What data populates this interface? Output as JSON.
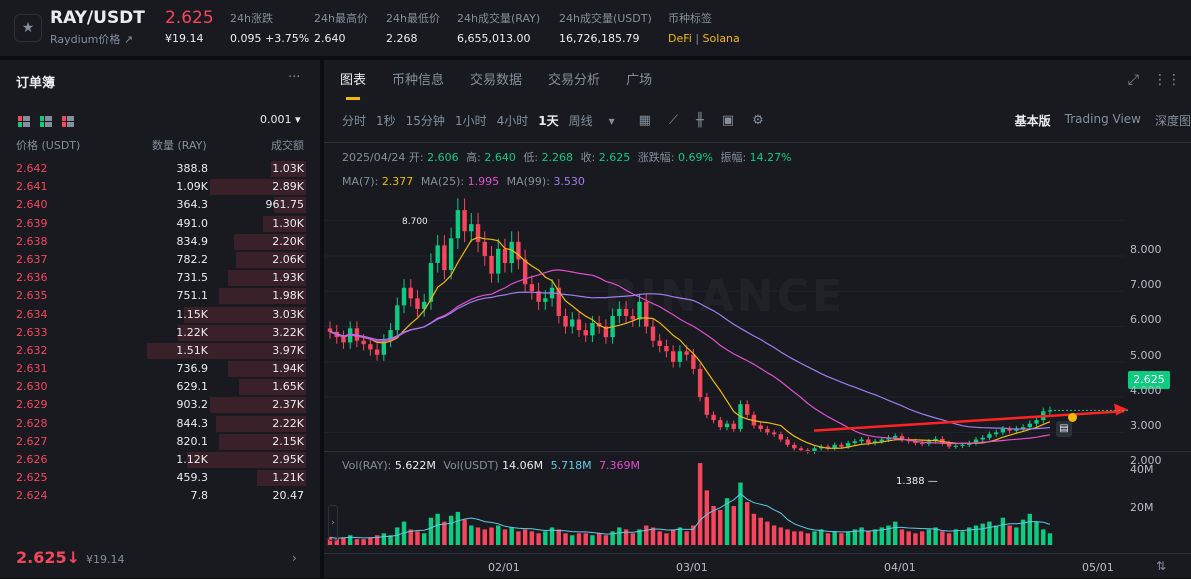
{
  "header": {
    "pair": "RAY/USDT",
    "subtitle": "Raydium价格 ↗",
    "price": "2.625",
    "price_cny": "¥19.14",
    "stats": [
      {
        "label": "24h涨跌",
        "value": "0.095 +3.75%"
      },
      {
        "label": "24h最高价",
        "value": "2.640"
      },
      {
        "label": "24h最低价",
        "value": "2.268"
      },
      {
        "label": "24h成交量(RAY)",
        "value": "6,655,013.00"
      },
      {
        "label": "24h成交量(USDT)",
        "value": "16,726,185.79"
      }
    ],
    "tags_label": "币种标签",
    "tag1": "DeFi",
    "tag_sep": "|",
    "tag2": "Solana"
  },
  "orderbook": {
    "title": "订单簿",
    "more": "···",
    "precision": "0.001 ▾",
    "col_price": "价格 (USDT)",
    "col_qty": "数量 (RAY)",
    "col_total": "成交额",
    "rows": [
      {
        "p": "2.642",
        "q": "388.8",
        "t": "1.03K",
        "d": 0.12
      },
      {
        "p": "2.641",
        "q": "1.09K",
        "t": "2.89K",
        "d": 0.33
      },
      {
        "p": "2.640",
        "q": "364.3",
        "t": "961.75",
        "d": 0.11
      },
      {
        "p": "2.639",
        "q": "491.0",
        "t": "1.30K",
        "d": 0.15
      },
      {
        "p": "2.638",
        "q": "834.9",
        "t": "2.20K",
        "d": 0.25
      },
      {
        "p": "2.637",
        "q": "782.2",
        "t": "2.06K",
        "d": 0.24
      },
      {
        "p": "2.636",
        "q": "731.5",
        "t": "1.93K",
        "d": 0.27
      },
      {
        "p": "2.635",
        "q": "751.1",
        "t": "1.98K",
        "d": 0.3
      },
      {
        "p": "2.634",
        "q": "1.15K",
        "t": "3.03K",
        "d": 0.42
      },
      {
        "p": "2.633",
        "q": "1.22K",
        "t": "3.22K",
        "d": 0.44
      },
      {
        "p": "2.632",
        "q": "1.51K",
        "t": "3.97K",
        "d": 0.55
      },
      {
        "p": "2.631",
        "q": "736.9",
        "t": "1.94K",
        "d": 0.27
      },
      {
        "p": "2.630",
        "q": "629.1",
        "t": "1.65K",
        "d": 0.23
      },
      {
        "p": "2.629",
        "q": "903.2",
        "t": "2.37K",
        "d": 0.33
      },
      {
        "p": "2.628",
        "q": "844.3",
        "t": "2.22K",
        "d": 0.31
      },
      {
        "p": "2.627",
        "q": "820.1",
        "t": "2.15K",
        "d": 0.3
      },
      {
        "p": "2.626",
        "q": "1.12K",
        "t": "2.95K",
        "d": 0.41
      },
      {
        "p": "2.625",
        "q": "459.3",
        "t": "1.21K",
        "d": 0.17
      },
      {
        "p": "2.624",
        "q": "7.8",
        "t": "20.47",
        "d": 0.0
      }
    ],
    "last_price": "2.625↓",
    "last_cny": "¥19.14",
    "arrow": "›"
  },
  "tabs": [
    "图表",
    "币种信息",
    "交易数据",
    "交易分析",
    "广场"
  ],
  "toolbar": {
    "intervals": [
      "分时",
      "1秒",
      "15分钟",
      "1小时",
      "4小时",
      "1天",
      "周线"
    ],
    "selected": "1天",
    "dropdown": "▾",
    "views": [
      "基本版",
      "Trading View",
      "深度图"
    ],
    "selected_view": "基本版"
  },
  "chart": {
    "ohlc": {
      "date": "2025/04/24",
      "open_label": "开:",
      "open": "2.606",
      "high_label": "高:",
      "high": "2.640",
      "low_label": "低:",
      "low": "2.268",
      "close_label": "收:",
      "close": "2.625",
      "chg_label": "涨跌幅:",
      "chg": "0.69%",
      "amp_label": "振幅:",
      "amp": "14.27%"
    },
    "ma": {
      "ma7_label": "MA(7):",
      "ma7": "2.377",
      "ma25_label": "MA(25):",
      "ma25": "1.995",
      "ma99_label": "MA(99):",
      "ma99": "3.530"
    },
    "vol": {
      "ray_label": "Vol(RAY):",
      "ray": "5.622M",
      "usdt_label": "Vol(USDT)",
      "usdt": "14.06M",
      "v1": "5.718M",
      "v2": "7.369M"
    },
    "current_price": "2.625",
    "high_marker": "8.700",
    "low_marker": "1.388 —",
    "watermark": "BINANCE",
    "y_ticks": [
      "8.000",
      "7.000",
      "6.000",
      "5.000",
      "4.000",
      "3.000",
      "2.000"
    ],
    "vol_ticks": [
      "40M",
      "20M"
    ],
    "x_ticks": [
      "02/01",
      "03/01",
      "04/01",
      "05/01"
    ],
    "colors": {
      "up": "#0ecb81",
      "down": "#f6465d",
      "ma7": "#f0b90b",
      "ma25": "#e14ecf",
      "ma99": "#a07cf0",
      "arrow": "#ff2222"
    }
  },
  "chart_data": {
    "type": "candlestick",
    "title": "RAY/USDT 1天",
    "x_start": "2025-01-15",
    "closes": [
      4.85,
      4.7,
      4.55,
      4.95,
      4.6,
      4.5,
      4.35,
      4.2,
      4.6,
      4.9,
      5.6,
      6.1,
      5.8,
      5.5,
      5.7,
      6.8,
      7.3,
      6.6,
      7.5,
      8.3,
      7.7,
      7.9,
      7.4,
      7.0,
      6.5,
      7.2,
      6.8,
      7.4,
      6.9,
      6.2,
      6.0,
      5.7,
      5.8,
      6.1,
      5.3,
      5.0,
      5.2,
      4.9,
      4.75,
      5.1,
      5.0,
      4.7,
      5.3,
      5.5,
      5.3,
      5.2,
      5.7,
      5.0,
      4.6,
      4.45,
      4.3,
      4.0,
      4.3,
      4.2,
      3.8,
      3.0,
      2.5,
      2.35,
      2.15,
      2.25,
      2.1,
      2.8,
      2.5,
      2.2,
      2.1,
      2.0,
      1.95,
      1.8,
      1.65,
      1.55,
      1.5,
      1.45,
      1.55,
      1.6,
      1.55,
      1.65,
      1.6,
      1.7,
      1.75,
      1.8,
      1.7,
      1.75,
      1.8,
      1.85,
      1.9,
      1.8,
      1.75,
      1.7,
      1.68,
      1.75,
      1.82,
      1.7,
      1.6,
      1.62,
      1.65,
      1.7,
      1.8,
      1.85,
      1.95,
      2.0,
      2.1,
      2.05,
      2.1,
      2.15,
      2.25,
      2.35,
      2.6,
      2.625
    ],
    "volume_m": [
      4,
      3,
      4,
      5,
      3,
      3,
      4,
      5,
      6,
      5,
      9,
      12,
      8,
      7,
      6,
      14,
      16,
      12,
      15,
      17,
      13,
      10,
      9,
      8,
      9,
      10,
      8,
      9,
      7,
      8,
      7,
      6,
      7,
      9,
      8,
      6,
      5,
      6,
      6,
      5,
      6,
      5,
      7,
      9,
      8,
      6,
      8,
      10,
      9,
      7,
      6,
      8,
      9,
      7,
      10,
      42,
      28,
      20,
      18,
      24,
      20,
      32,
      22,
      16,
      14,
      12,
      10,
      9,
      8,
      7,
      7,
      6,
      7,
      8,
      6,
      7,
      6,
      7,
      8,
      9,
      7,
      8,
      9,
      10,
      12,
      8,
      7,
      6,
      7,
      8,
      9,
      7,
      6,
      8,
      7,
      9,
      10,
      11,
      12,
      10,
      14,
      10,
      9,
      13,
      16,
      12,
      8,
      6
    ],
    "ylim": [
      1.2,
      9.0
    ],
    "ma_values": {
      "ma7": 2.377,
      "ma25": 1.995,
      "ma99": 3.53
    },
    "annotations": {
      "period_high": 8.7,
      "period_low": 1.388
    }
  }
}
